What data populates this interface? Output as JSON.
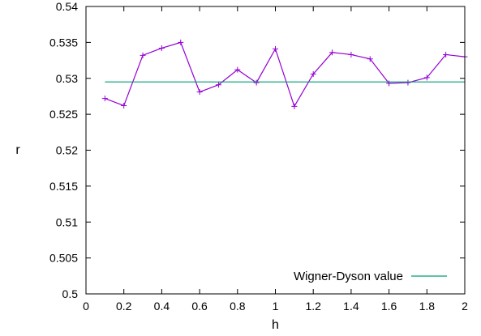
{
  "chart_data": {
    "type": "line",
    "xlabel": "h",
    "ylabel": "r",
    "xlim": [
      0,
      2
    ],
    "ylim": [
      0.5,
      0.54
    ],
    "x_ticks": [
      "0",
      "0.2",
      "0.4",
      "0.6",
      "0.8",
      "1",
      "1.2",
      "1.4",
      "1.6",
      "1.8",
      "2"
    ],
    "y_ticks": [
      "0.5",
      "0.505",
      "0.51",
      "0.515",
      "0.52",
      "0.525",
      "0.53",
      "0.535",
      "0.54"
    ],
    "grid": false,
    "legend_position": "bottom-right",
    "series": [
      {
        "style": "linespoints",
        "marker": "plus",
        "color": "#9400d3",
        "x": [
          0.1,
          0.2,
          0.3,
          0.4,
          0.5,
          0.6,
          0.7,
          0.8,
          0.9,
          1.0,
          1.1,
          1.2,
          1.3,
          1.4,
          1.5,
          1.6,
          1.7,
          1.8,
          1.9,
          2.0
        ],
        "y": [
          0.5272,
          0.5262,
          0.5332,
          0.5342,
          0.535,
          0.5281,
          0.5291,
          0.5312,
          0.5294,
          0.5341,
          0.5261,
          0.5306,
          0.5336,
          0.5333,
          0.5327,
          0.5293,
          0.5294,
          0.5301,
          0.5333,
          0.533
        ]
      },
      {
        "name": "Wigner-Dyson value",
        "style": "line",
        "color": "#009e73",
        "x": [
          0.1,
          2.0
        ],
        "y": [
          0.5295,
          0.5295
        ]
      }
    ]
  }
}
